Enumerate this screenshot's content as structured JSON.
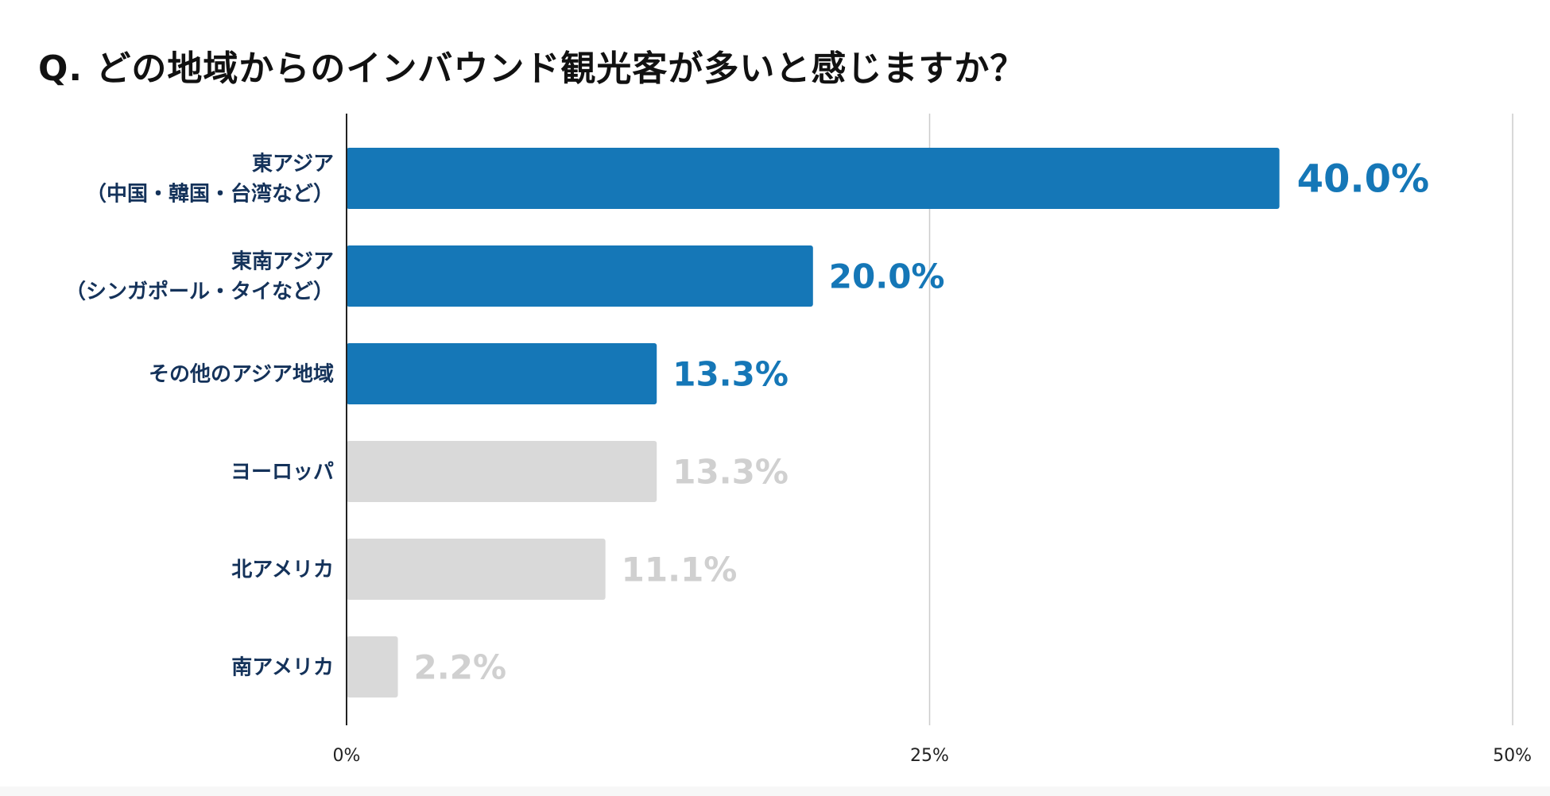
{
  "title": "Q. どの地域からのインバウンド観光客が多いと感じますか？",
  "colors": {
    "highlight": "#1577b7",
    "muted_bar": "#d9d9d9",
    "muted_label": "#d0d0d0",
    "category_text": "#14325a",
    "grid": "#cccccc",
    "axis": "#222222",
    "tick_text": "#222222"
  },
  "chart_data": {
    "type": "bar",
    "orientation": "horizontal",
    "title": "Q. どの地域からのインバウンド観光客が多いと感じますか？",
    "categories": [
      [
        "東アジア",
        "（中国・韓国・台湾など）"
      ],
      [
        "東南アジア",
        "（シンガポール・タイなど）"
      ],
      [
        "その他のアジア地域"
      ],
      [
        "ヨーロッパ"
      ],
      [
        "北アメリカ"
      ],
      [
        "南アメリカ"
      ]
    ],
    "values": [
      40.0,
      20.0,
      13.3,
      13.3,
      11.1,
      2.2
    ],
    "value_labels": [
      "40.0%",
      "20.0%",
      "13.3%",
      "13.3%",
      "11.1%",
      "2.2%"
    ],
    "highlighted": [
      true,
      true,
      true,
      false,
      false,
      false
    ],
    "xlim": [
      0,
      50
    ],
    "xticks": [
      0,
      25,
      50
    ],
    "xtick_labels": [
      "0%",
      "25%",
      "50%"
    ],
    "grid": true,
    "xlabel": "",
    "ylabel": ""
  }
}
